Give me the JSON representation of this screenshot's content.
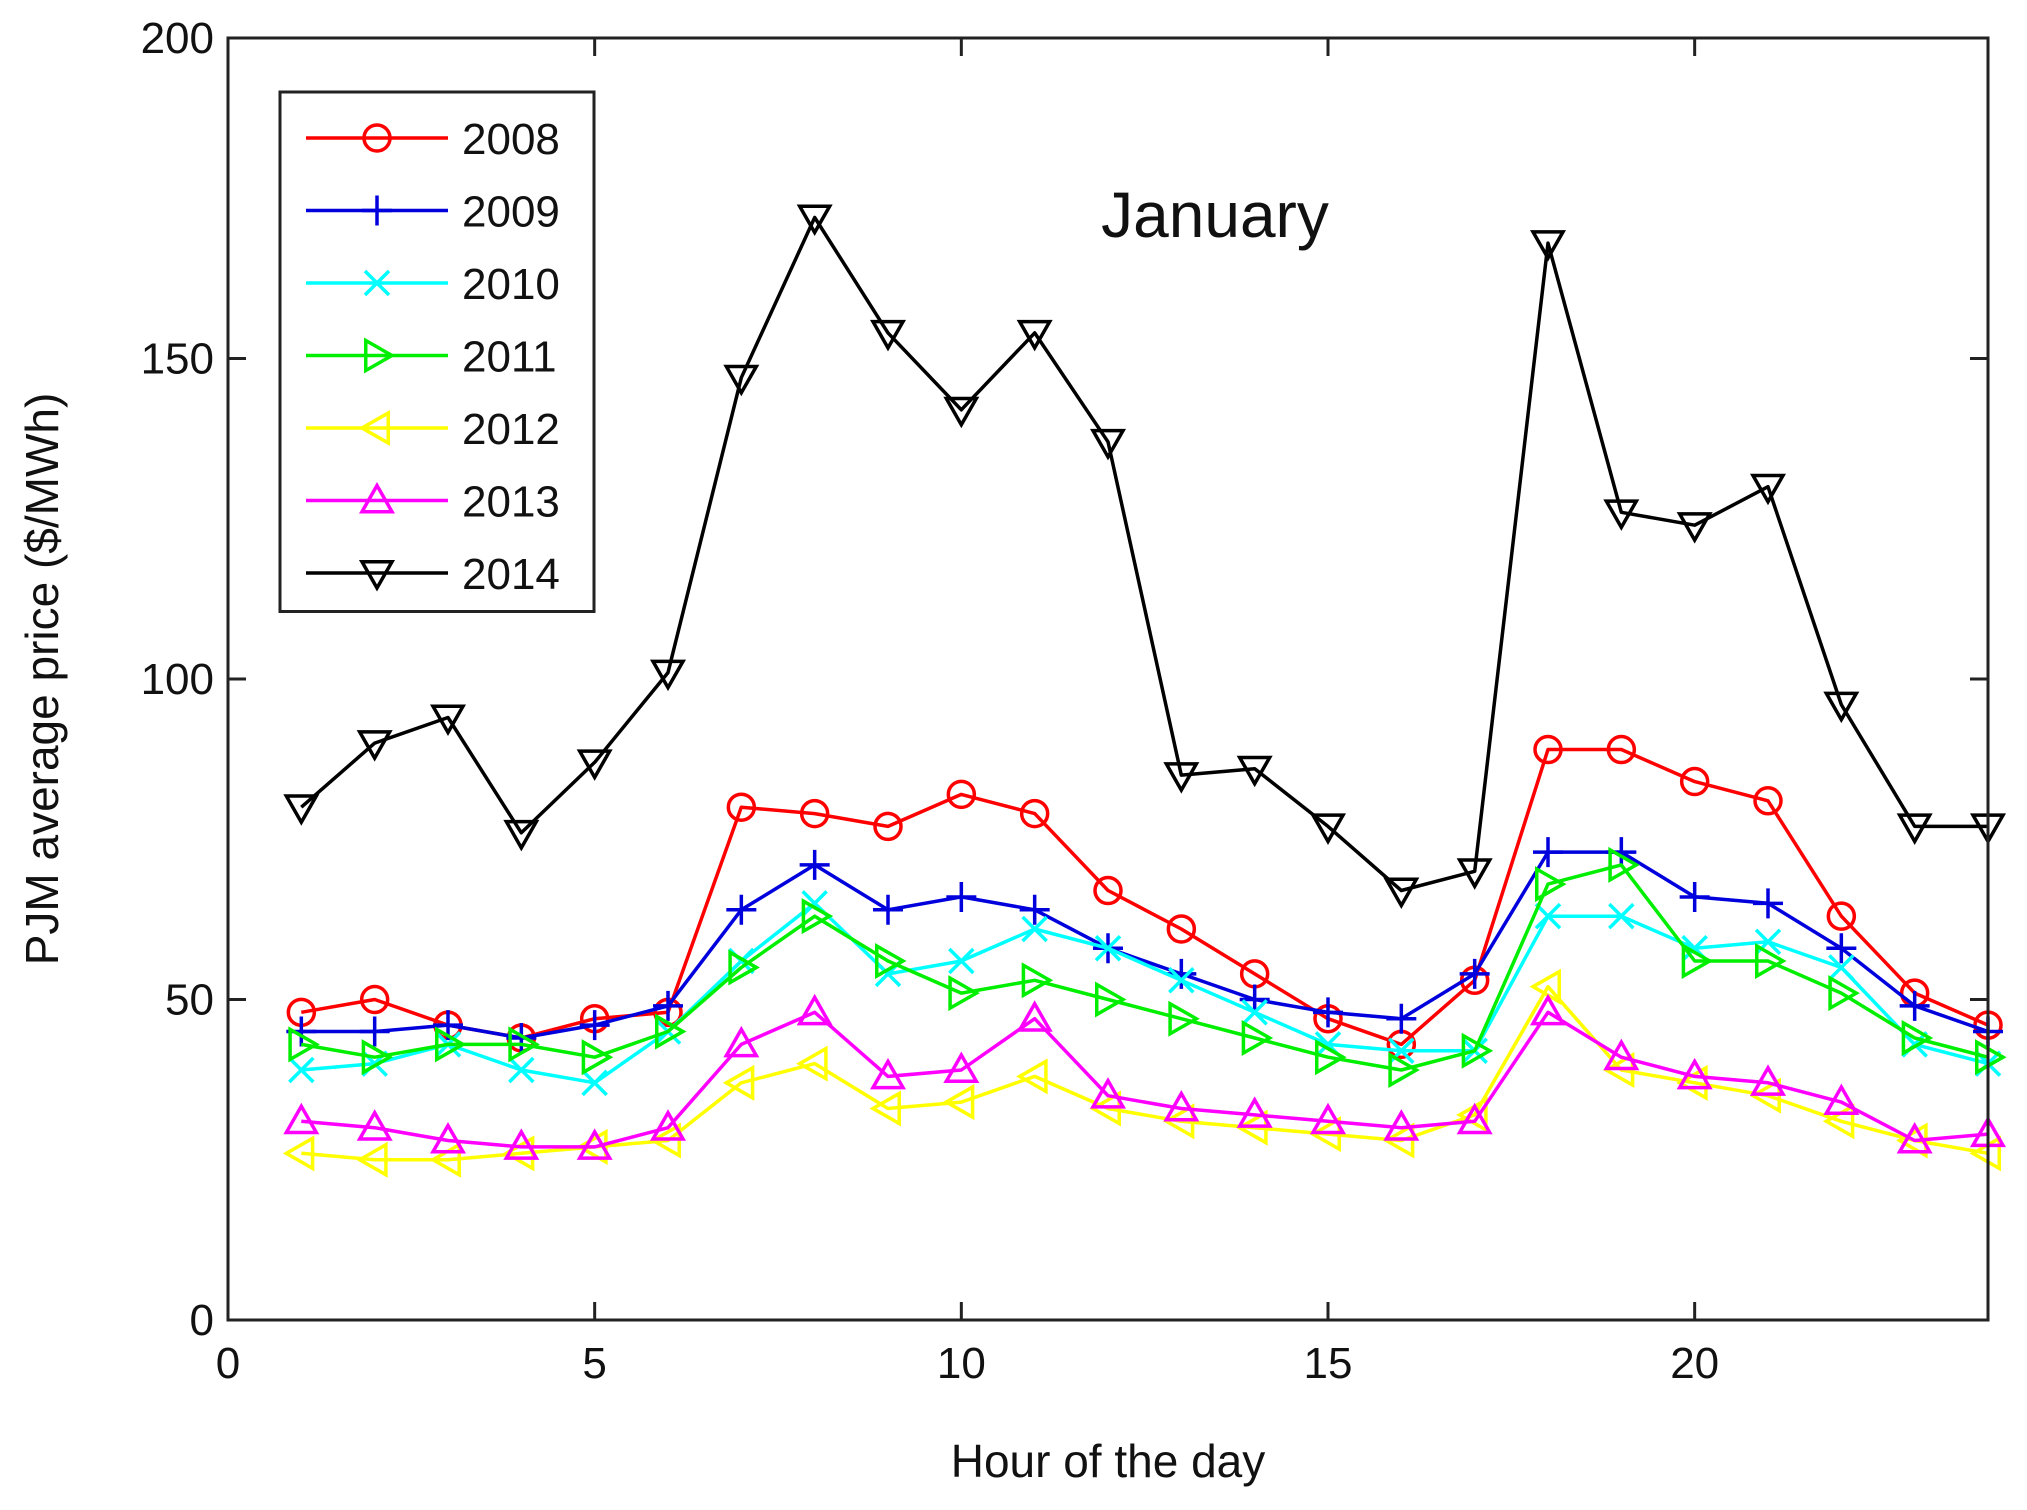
{
  "chart_data": {
    "type": "line",
    "title": "",
    "annotation": "January",
    "xlabel": "Hour of the day",
    "ylabel": "PJM average price ($/MWh)",
    "xlim": [
      0,
      24
    ],
    "ylim": [
      0,
      200
    ],
    "xticks": [
      0,
      5,
      10,
      15,
      20
    ],
    "yticks": [
      0,
      50,
      100,
      150,
      200
    ],
    "grid": false,
    "legend_position": "top-left",
    "x": [
      1,
      2,
      3,
      4,
      5,
      6,
      7,
      8,
      9,
      10,
      11,
      12,
      13,
      14,
      15,
      16,
      17,
      18,
      19,
      20,
      21,
      22,
      23,
      24
    ],
    "series": [
      {
        "name": "2008",
        "color": "#ff0000",
        "marker": "circle",
        "values": [
          48,
          50,
          46,
          44,
          47,
          48,
          80,
          79,
          77,
          82,
          79,
          67,
          61,
          54,
          47,
          43,
          53,
          89,
          89,
          84,
          81,
          63,
          51,
          46
        ]
      },
      {
        "name": "2009",
        "color": "#0000dd",
        "marker": "plus",
        "values": [
          45,
          45,
          46,
          44,
          46,
          49,
          64,
          71,
          64,
          66,
          64,
          58,
          54,
          50,
          48,
          47,
          54,
          73,
          73,
          66,
          65,
          58,
          49,
          45
        ]
      },
      {
        "name": "2010",
        "color": "#00ffff",
        "marker": "cross",
        "values": [
          39,
          40,
          43,
          39,
          37,
          45,
          56,
          65,
          54,
          56,
          61,
          58,
          53,
          48,
          43,
          42,
          42,
          63,
          63,
          58,
          59,
          55,
          43,
          40
        ]
      },
      {
        "name": "2011",
        "color": "#00ee00",
        "marker": "triangle-right",
        "values": [
          43,
          41,
          43,
          43,
          41,
          45,
          55,
          63,
          56,
          51,
          53,
          50,
          47,
          44,
          41,
          39,
          42,
          68,
          71,
          56,
          56,
          51,
          44,
          41
        ]
      },
      {
        "name": "2012",
        "color": "#ffff00",
        "marker": "triangle-left",
        "values": [
          26,
          25,
          25,
          26,
          27,
          28,
          37,
          40,
          33,
          34,
          38,
          33,
          31,
          30,
          29,
          28,
          32,
          52,
          39,
          37,
          35,
          31,
          28,
          26
        ]
      },
      {
        "name": "2013",
        "color": "#ff00ff",
        "marker": "triangle-up",
        "values": [
          31,
          30,
          28,
          27,
          27,
          30,
          43,
          48,
          38,
          39,
          47,
          35,
          33,
          32,
          31,
          30,
          31,
          48,
          41,
          38,
          37,
          34,
          28,
          29
        ]
      },
      {
        "name": "2014",
        "color": "#000000",
        "marker": "triangle-down",
        "values": [
          80,
          90,
          94,
          76,
          87,
          101,
          147,
          172,
          154,
          142,
          154,
          137,
          85,
          86,
          77,
          67,
          70,
          168,
          126,
          124,
          130,
          96,
          77,
          77
        ]
      }
    ]
  }
}
